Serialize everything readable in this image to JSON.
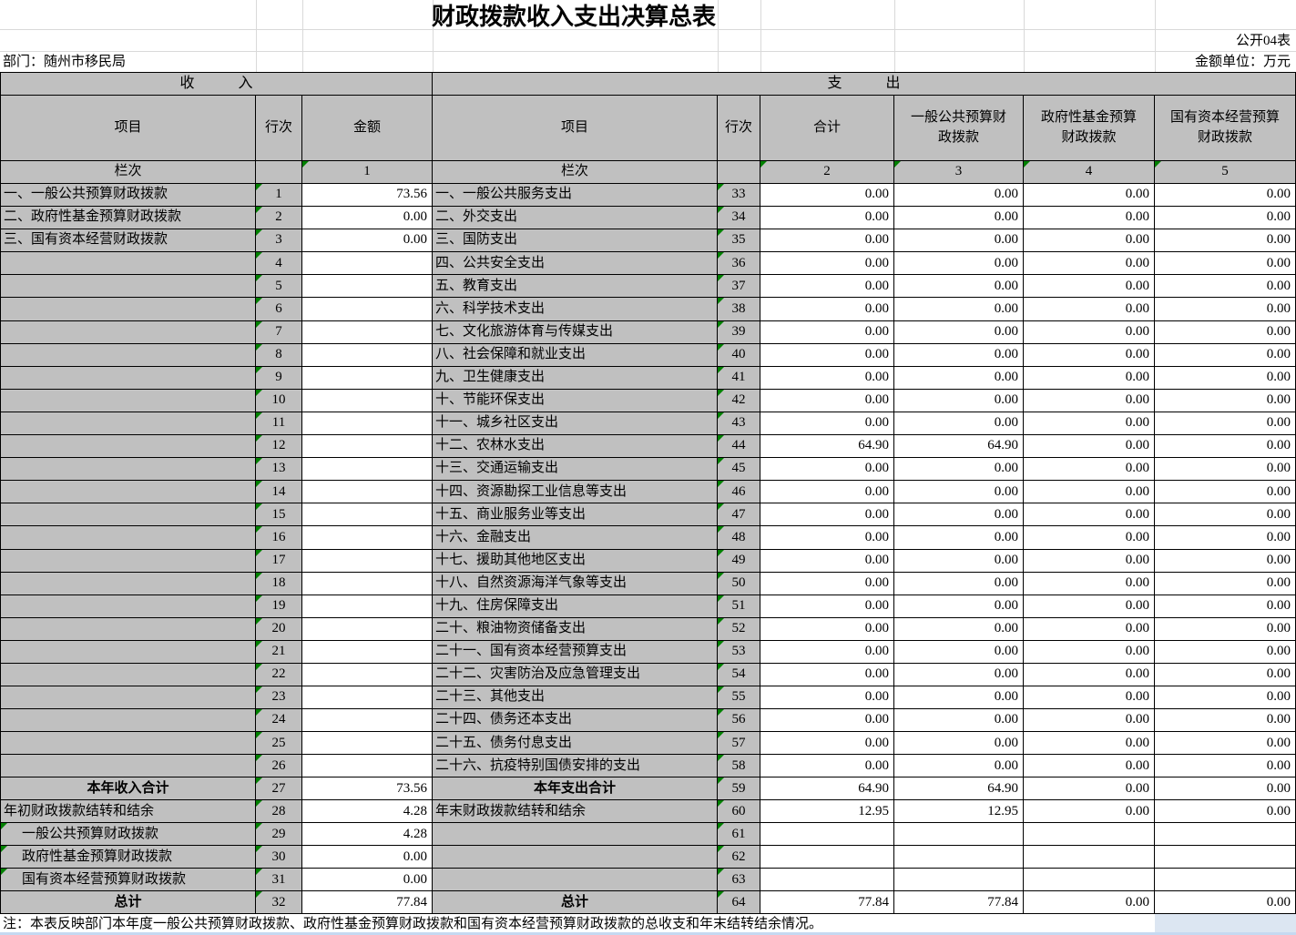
{
  "meta": {
    "title": "财政拨款收入支出决算总表",
    "sheet_label": "公开04表",
    "department": "部门：随州市移民局",
    "unit_label": "金额单位：万元",
    "note": "注：本表反映部门本年度一般公共预算财政拨款、政府性基金预算财政拨款和国有资本经营预算财政拨款的总收支和年末结转结余情况。"
  },
  "colors": {
    "cell_gray": "#c0c0c0",
    "indicator_green": "#008000",
    "side_cell_blue": "#dce6f2",
    "bottom_strip_blue": "#c6d9f1"
  },
  "table": {
    "section_headers": {
      "income": "收　　　入",
      "expense": "支　　　出"
    },
    "column_headers": {
      "item": "项目",
      "row_no": "行次",
      "amount": "金额",
      "total": "合计",
      "general_budget": "一般公共预算财政拨款",
      "gov_fund_budget": "政府性基金预算财政拨款",
      "state_capital_budget": "国有资本经营预算财政拨款",
      "lanci": "栏次",
      "col_nums": [
        "1",
        "2",
        "3",
        "4",
        "5"
      ]
    },
    "income_rows": [
      {
        "item": "一、一般公共预算财政拨款",
        "no": "1",
        "amount": "73.56"
      },
      {
        "item": "二、政府性基金预算财政拨款",
        "no": "2",
        "amount": "0.00"
      },
      {
        "item": "三、国有资本经营财政拨款",
        "no": "3",
        "amount": "0.00"
      },
      {
        "item": "",
        "no": "4",
        "amount": ""
      },
      {
        "item": "",
        "no": "5",
        "amount": ""
      },
      {
        "item": "",
        "no": "6",
        "amount": ""
      },
      {
        "item": "",
        "no": "7",
        "amount": ""
      },
      {
        "item": "",
        "no": "8",
        "amount": ""
      },
      {
        "item": "",
        "no": "9",
        "amount": ""
      },
      {
        "item": "",
        "no": "10",
        "amount": ""
      },
      {
        "item": "",
        "no": "11",
        "amount": ""
      },
      {
        "item": "",
        "no": "12",
        "amount": ""
      },
      {
        "item": "",
        "no": "13",
        "amount": ""
      },
      {
        "item": "",
        "no": "14",
        "amount": ""
      },
      {
        "item": "",
        "no": "15",
        "amount": ""
      },
      {
        "item": "",
        "no": "16",
        "amount": ""
      },
      {
        "item": "",
        "no": "17",
        "amount": ""
      },
      {
        "item": "",
        "no": "18",
        "amount": ""
      },
      {
        "item": "",
        "no": "19",
        "amount": ""
      },
      {
        "item": "",
        "no": "20",
        "amount": ""
      },
      {
        "item": "",
        "no": "21",
        "amount": ""
      },
      {
        "item": "",
        "no": "22",
        "amount": ""
      },
      {
        "item": "",
        "no": "23",
        "amount": ""
      },
      {
        "item": "",
        "no": "24",
        "amount": ""
      },
      {
        "item": "",
        "no": "25",
        "amount": ""
      },
      {
        "item": "",
        "no": "26",
        "amount": ""
      }
    ],
    "income_summary": [
      {
        "item": "本年收入合计",
        "no": "27",
        "amount": "73.56",
        "bold": true,
        "center": true
      },
      {
        "item": "年初财政拨款结转和结余",
        "no": "28",
        "amount": "4.28"
      },
      {
        "item": "一般公共预算财政拨款",
        "no": "29",
        "amount": "4.28",
        "indent": true,
        "tri_item": true
      },
      {
        "item": "政府性基金预算财政拨款",
        "no": "30",
        "amount": "0.00",
        "indent": true,
        "tri_item": true
      },
      {
        "item": "国有资本经营预算财政拨款",
        "no": "31",
        "amount": "0.00",
        "indent": true,
        "tri_item": true
      },
      {
        "item": "总计",
        "no": "32",
        "amount": "77.84",
        "bold": true,
        "center": true
      }
    ],
    "expense_rows": [
      {
        "item": "一、一般公共服务支出",
        "no": "33",
        "values": [
          "0.00",
          "0.00",
          "0.00",
          "0.00"
        ]
      },
      {
        "item": "二、外交支出",
        "no": "34",
        "values": [
          "0.00",
          "0.00",
          "0.00",
          "0.00"
        ]
      },
      {
        "item": "三、国防支出",
        "no": "35",
        "values": [
          "0.00",
          "0.00",
          "0.00",
          "0.00"
        ]
      },
      {
        "item": "四、公共安全支出",
        "no": "36",
        "values": [
          "0.00",
          "0.00",
          "0.00",
          "0.00"
        ]
      },
      {
        "item": "五、教育支出",
        "no": "37",
        "values": [
          "0.00",
          "0.00",
          "0.00",
          "0.00"
        ]
      },
      {
        "item": "六、科学技术支出",
        "no": "38",
        "values": [
          "0.00",
          "0.00",
          "0.00",
          "0.00"
        ]
      },
      {
        "item": "七、文化旅游体育与传媒支出",
        "no": "39",
        "values": [
          "0.00",
          "0.00",
          "0.00",
          "0.00"
        ]
      },
      {
        "item": "八、社会保障和就业支出",
        "no": "40",
        "values": [
          "0.00",
          "0.00",
          "0.00",
          "0.00"
        ]
      },
      {
        "item": "九、卫生健康支出",
        "no": "41",
        "values": [
          "0.00",
          "0.00",
          "0.00",
          "0.00"
        ]
      },
      {
        "item": "十、节能环保支出",
        "no": "42",
        "values": [
          "0.00",
          "0.00",
          "0.00",
          "0.00"
        ]
      },
      {
        "item": "十一、城乡社区支出",
        "no": "43",
        "values": [
          "0.00",
          "0.00",
          "0.00",
          "0.00"
        ]
      },
      {
        "item": "十二、农林水支出",
        "no": "44",
        "values": [
          "64.90",
          "64.90",
          "0.00",
          "0.00"
        ]
      },
      {
        "item": "十三、交通运输支出",
        "no": "45",
        "values": [
          "0.00",
          "0.00",
          "0.00",
          "0.00"
        ]
      },
      {
        "item": "十四、资源勘探工业信息等支出",
        "no": "46",
        "values": [
          "0.00",
          "0.00",
          "0.00",
          "0.00"
        ]
      },
      {
        "item": "十五、商业服务业等支出",
        "no": "47",
        "values": [
          "0.00",
          "0.00",
          "0.00",
          "0.00"
        ]
      },
      {
        "item": "十六、金融支出",
        "no": "48",
        "values": [
          "0.00",
          "0.00",
          "0.00",
          "0.00"
        ]
      },
      {
        "item": "十七、援助其他地区支出",
        "no": "49",
        "values": [
          "0.00",
          "0.00",
          "0.00",
          "0.00"
        ]
      },
      {
        "item": "十八、自然资源海洋气象等支出",
        "no": "50",
        "values": [
          "0.00",
          "0.00",
          "0.00",
          "0.00"
        ]
      },
      {
        "item": "十九、住房保障支出",
        "no": "51",
        "values": [
          "0.00",
          "0.00",
          "0.00",
          "0.00"
        ]
      },
      {
        "item": "二十、粮油物资储备支出",
        "no": "52",
        "values": [
          "0.00",
          "0.00",
          "0.00",
          "0.00"
        ]
      },
      {
        "item": "二十一、国有资本经营预算支出",
        "no": "53",
        "values": [
          "0.00",
          "0.00",
          "0.00",
          "0.00"
        ]
      },
      {
        "item": "二十二、灾害防治及应急管理支出",
        "no": "54",
        "values": [
          "0.00",
          "0.00",
          "0.00",
          "0.00"
        ]
      },
      {
        "item": "二十三、其他支出",
        "no": "55",
        "values": [
          "0.00",
          "0.00",
          "0.00",
          "0.00"
        ]
      },
      {
        "item": "二十四、债务还本支出",
        "no": "56",
        "values": [
          "0.00",
          "0.00",
          "0.00",
          "0.00"
        ]
      },
      {
        "item": "二十五、债务付息支出",
        "no": "57",
        "values": [
          "0.00",
          "0.00",
          "0.00",
          "0.00"
        ]
      },
      {
        "item": "二十六、抗疫特别国债安排的支出",
        "no": "58",
        "values": [
          "0.00",
          "0.00",
          "0.00",
          "0.00"
        ]
      }
    ],
    "expense_summary": [
      {
        "item": "本年支出合计",
        "no": "59",
        "values": [
          "64.90",
          "64.90",
          "0.00",
          "0.00"
        ],
        "bold": true,
        "center": true
      },
      {
        "item": "年末财政拨款结转和结余",
        "no": "60",
        "values": [
          "12.95",
          "12.95",
          "0.00",
          "0.00"
        ]
      },
      {
        "item": "",
        "no": "61",
        "values": [
          "",
          "",
          "",
          ""
        ]
      },
      {
        "item": "",
        "no": "62",
        "values": [
          "",
          "",
          "",
          ""
        ]
      },
      {
        "item": "",
        "no": "63",
        "values": [
          "",
          "",
          "",
          ""
        ]
      },
      {
        "item": "总计",
        "no": "64",
        "values": [
          "77.84",
          "77.84",
          "0.00",
          "0.00"
        ],
        "bold": true,
        "center": true
      }
    ]
  }
}
